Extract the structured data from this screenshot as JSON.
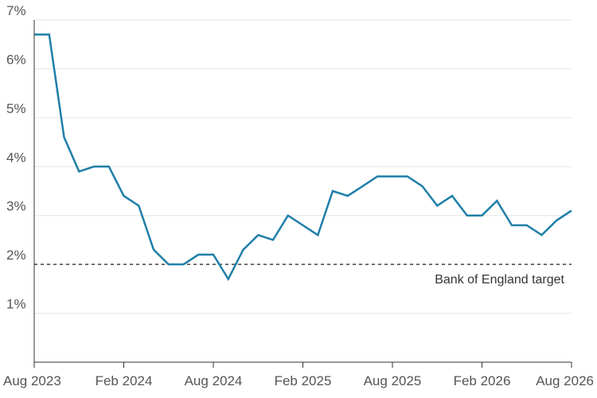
{
  "chart_data": {
    "type": "line",
    "title": "",
    "xlabel": "",
    "ylabel": "",
    "ylim": [
      0,
      7
    ],
    "y_ticks": [
      {
        "value": 1,
        "label": "1%"
      },
      {
        "value": 2,
        "label": "2%"
      },
      {
        "value": 3,
        "label": "3%"
      },
      {
        "value": 4,
        "label": "4%"
      },
      {
        "value": 5,
        "label": "5%"
      },
      {
        "value": 6,
        "label": "6%"
      },
      {
        "value": 7,
        "label": "7%"
      }
    ],
    "x_ticks": [
      {
        "value": "2023-08",
        "label": "Aug 2023"
      },
      {
        "value": "2024-02",
        "label": "Feb 2024"
      },
      {
        "value": "2024-08",
        "label": "Aug 2024"
      },
      {
        "value": "2025-02",
        "label": "Feb 2025"
      },
      {
        "value": "2025-08",
        "label": "Aug 2025"
      },
      {
        "value": "2026-02",
        "label": "Feb 2026"
      },
      {
        "value": "2026-08",
        "label": "Aug 2026"
      }
    ],
    "xlim": [
      "2023-08",
      "2026-08"
    ],
    "grid": true,
    "series": [
      {
        "color": "#1f7fa8",
        "x": [
          "2023-08",
          "2023-09",
          "2023-10",
          "2023-11",
          "2023-12",
          "2024-01",
          "2024-02",
          "2024-03",
          "2024-04",
          "2024-05",
          "2024-06",
          "2024-07",
          "2024-08",
          "2024-09",
          "2024-10",
          "2024-11",
          "2024-12",
          "2025-01",
          "2025-02",
          "2025-03",
          "2025-04",
          "2025-05",
          "2025-06",
          "2025-07",
          "2025-08",
          "2025-09",
          "2025-10",
          "2025-11",
          "2025-12",
          "2026-01",
          "2026-02",
          "2026-03",
          "2026-04",
          "2026-05",
          "2026-06",
          "2026-07",
          "2026-08"
        ],
        "y": [
          6.7,
          6.7,
          4.6,
          3.9,
          4.0,
          4.0,
          3.4,
          3.2,
          2.3,
          2.0,
          2.0,
          2.2,
          2.2,
          1.7,
          2.3,
          2.6,
          2.5,
          3.0,
          2.8,
          2.6,
          3.5,
          3.4,
          3.6,
          3.8,
          3.8,
          3.8,
          3.6,
          3.2,
          3.4,
          3.0,
          3.0,
          3.3,
          2.8,
          2.8,
          2.6,
          2.9,
          3.1
        ]
      }
    ],
    "reference_line": {
      "value": 2,
      "label": "Bank of England target",
      "style": "dashed",
      "color": "#444444"
    }
  }
}
